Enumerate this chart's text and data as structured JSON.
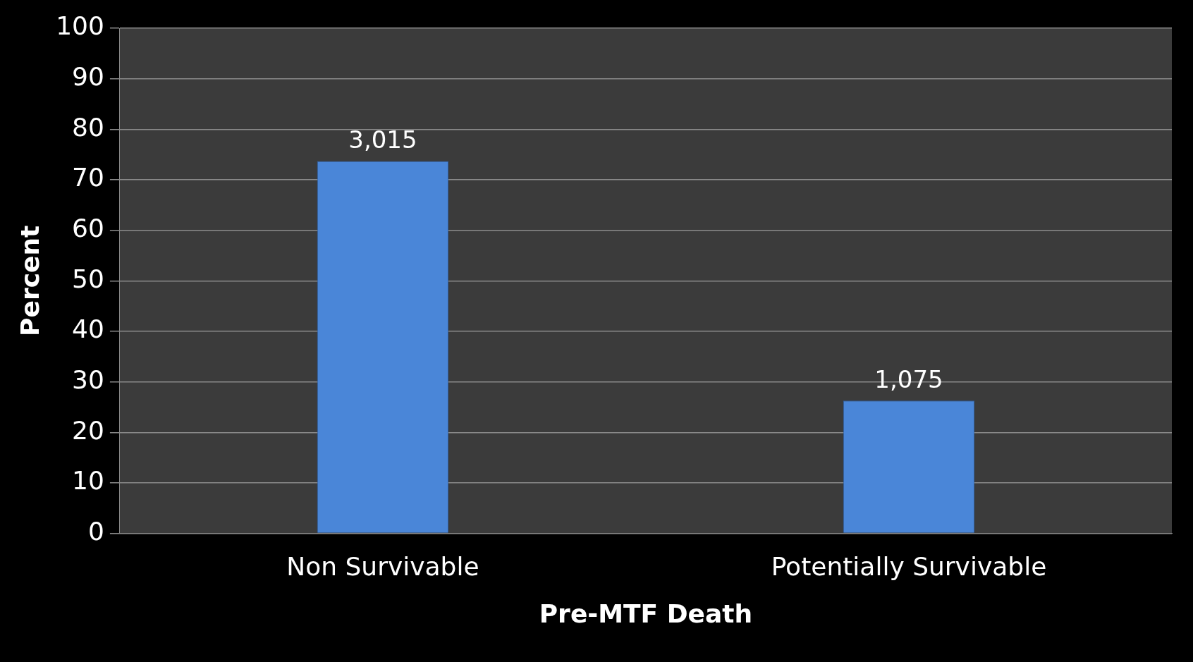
{
  "chart_data": {
    "type": "bar",
    "xlabel": "Pre-MTF Death",
    "ylabel": "Percent",
    "categories": [
      "Non Survivable",
      "Potentially Survivable"
    ],
    "values": [
      73.7,
      26.3
    ],
    "color": "#4a86d8",
    "annotations": [
      {
        "text": "3,015",
        "x": "Non Survivable",
        "y": 73.7
      },
      {
        "text": "1,075",
        "x": "Potentially Survivable",
        "y": 26.3
      }
    ],
    "ylim": [
      0,
      100
    ],
    "yticks": [
      0,
      10,
      20,
      30,
      40,
      50,
      60,
      70,
      80,
      90,
      100
    ],
    "grid": "y",
    "legend": false
  }
}
